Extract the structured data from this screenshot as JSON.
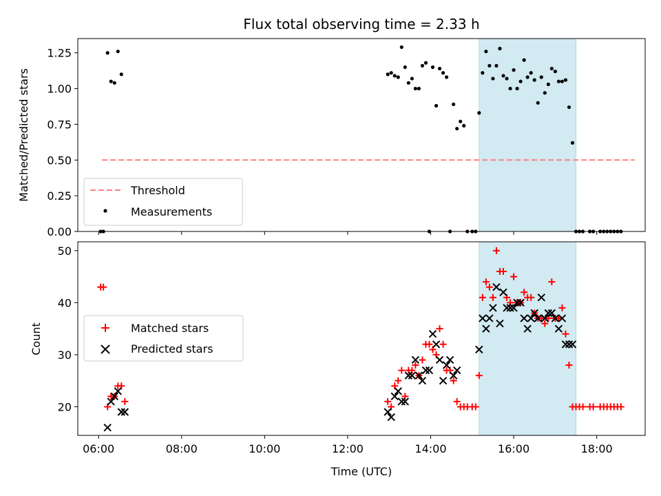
{
  "chart_data": [
    {
      "type": "scatter",
      "title": "Flux total observing time = 2.33 h",
      "ylabel": "Matched/Predicted stars",
      "xlabel": "",
      "xlim": [
        "05:30",
        "19:10"
      ],
      "ylim": [
        0,
        1.35
      ],
      "yticks": [
        0.0,
        0.25,
        0.5,
        0.75,
        1.0,
        1.25
      ],
      "ytick_labels": [
        "0.00",
        "0.25",
        "0.50",
        "0.75",
        "1.00",
        "1.25"
      ],
      "xticks": [
        "06:00",
        "08:00",
        "10:00",
        "12:00",
        "14:00",
        "16:00",
        "18:00"
      ],
      "show_xtick_labels": false,
      "shaded_region": {
        "start": "15:10",
        "end": "17:30",
        "color": "#add8e6"
      },
      "legend_position": "lower-left",
      "threshold": {
        "name": "Threshold",
        "value": 0.5,
        "x_start": "06:05",
        "x_end": "18:55",
        "color": "#ff7f7f"
      },
      "series": [
        {
          "name": "Measurements",
          "color": "#000000",
          "points": [
            [
              "06:03",
              0.0
            ],
            [
              "06:07",
              0.0
            ],
            [
              "06:13",
              1.25
            ],
            [
              "06:18",
              1.05
            ],
            [
              "06:23",
              1.04
            ],
            [
              "06:28",
              1.26
            ],
            [
              "06:33",
              1.1
            ],
            [
              "12:58",
              1.1
            ],
            [
              "13:03",
              1.11
            ],
            [
              "13:08",
              1.09
            ],
            [
              "13:13",
              1.08
            ],
            [
              "13:18",
              1.29
            ],
            [
              "13:23",
              1.15
            ],
            [
              "13:28",
              1.04
            ],
            [
              "13:33",
              1.07
            ],
            [
              "13:38",
              1.0
            ],
            [
              "13:43",
              1.0
            ],
            [
              "13:48",
              1.16
            ],
            [
              "13:53",
              1.18
            ],
            [
              "13:58",
              0.0
            ],
            [
              "14:03",
              1.15
            ],
            [
              "14:08",
              0.88
            ],
            [
              "14:13",
              1.14
            ],
            [
              "14:18",
              1.11
            ],
            [
              "14:23",
              1.08
            ],
            [
              "14:28",
              0.0
            ],
            [
              "14:33",
              0.89
            ],
            [
              "14:38",
              0.72
            ],
            [
              "14:43",
              0.77
            ],
            [
              "14:48",
              0.74
            ],
            [
              "14:53",
              0.0
            ],
            [
              "15:00",
              0.0
            ],
            [
              "15:05",
              0.0
            ],
            [
              "15:10",
              0.83
            ],
            [
              "15:15",
              1.11
            ],
            [
              "15:20",
              1.26
            ],
            [
              "15:25",
              1.16
            ],
            [
              "15:30",
              1.07
            ],
            [
              "15:35",
              1.16
            ],
            [
              "15:40",
              1.28
            ],
            [
              "15:45",
              1.09
            ],
            [
              "15:50",
              1.07
            ],
            [
              "15:55",
              1.0
            ],
            [
              "16:00",
              1.13
            ],
            [
              "16:05",
              1.0
            ],
            [
              "16:10",
              1.05
            ],
            [
              "16:15",
              1.2
            ],
            [
              "16:20",
              1.08
            ],
            [
              "16:25",
              1.11
            ],
            [
              "16:30",
              1.06
            ],
            [
              "16:35",
              0.9
            ],
            [
              "16:40",
              1.08
            ],
            [
              "16:45",
              0.97
            ],
            [
              "16:50",
              1.03
            ],
            [
              "16:55",
              1.14
            ],
            [
              "17:00",
              1.12
            ],
            [
              "17:05",
              1.05
            ],
            [
              "17:10",
              1.05
            ],
            [
              "17:15",
              1.06
            ],
            [
              "17:20",
              0.87
            ],
            [
              "17:25",
              0.62
            ],
            [
              "17:30",
              0.0
            ],
            [
              "17:35",
              0.0
            ],
            [
              "17:40",
              0.0
            ],
            [
              "17:50",
              0.0
            ],
            [
              "17:55",
              0.0
            ],
            [
              "18:05",
              0.0
            ],
            [
              "18:10",
              0.0
            ],
            [
              "18:15",
              0.0
            ],
            [
              "18:20",
              0.0
            ],
            [
              "18:25",
              0.0
            ],
            [
              "18:30",
              0.0
            ],
            [
              "18:35",
              0.0
            ]
          ]
        }
      ]
    },
    {
      "type": "scatter",
      "title": "",
      "ylabel": "Count",
      "xlabel": "Time (UTC)",
      "xlim": [
        "05:30",
        "19:10"
      ],
      "ylim": [
        14.5,
        51.7
      ],
      "yticks": [
        20,
        30,
        40,
        50
      ],
      "ytick_labels": [
        "20",
        "30",
        "40",
        "50"
      ],
      "xticks": [
        "06:00",
        "08:00",
        "10:00",
        "12:00",
        "14:00",
        "16:00",
        "18:00"
      ],
      "xtick_labels": [
        "06:00",
        "08:00",
        "10:00",
        "12:00",
        "14:00",
        "16:00",
        "18:00"
      ],
      "shaded_region": {
        "start": "15:10",
        "end": "17:30",
        "color": "#add8e6"
      },
      "legend_position": "center-left",
      "series": [
        {
          "name": "Matched stars",
          "marker": "plus",
          "color": "#ff0000",
          "points": [
            [
              "06:03",
              43
            ],
            [
              "06:07",
              43
            ],
            [
              "06:13",
              20
            ],
            [
              "06:18",
              22
            ],
            [
              "06:23",
              22
            ],
            [
              "06:28",
              24
            ],
            [
              "06:33",
              24
            ],
            [
              "06:38",
              21
            ],
            [
              "12:58",
              21
            ],
            [
              "13:03",
              20
            ],
            [
              "13:08",
              24
            ],
            [
              "13:13",
              25
            ],
            [
              "13:18",
              27
            ],
            [
              "13:23",
              22
            ],
            [
              "13:28",
              27
            ],
            [
              "13:33",
              27
            ],
            [
              "13:38",
              28
            ],
            [
              "13:43",
              26
            ],
            [
              "13:48",
              29
            ],
            [
              "13:53",
              32
            ],
            [
              "13:58",
              32
            ],
            [
              "14:03",
              31
            ],
            [
              "14:08",
              30
            ],
            [
              "14:13",
              35
            ],
            [
              "14:18",
              32
            ],
            [
              "14:23",
              27
            ],
            [
              "14:28",
              27
            ],
            [
              "14:33",
              25
            ],
            [
              "14:38",
              21
            ],
            [
              "14:43",
              20
            ],
            [
              "14:48",
              20
            ],
            [
              "14:53",
              20
            ],
            [
              "15:00",
              20
            ],
            [
              "15:05",
              20
            ],
            [
              "15:10",
              26
            ],
            [
              "15:15",
              41
            ],
            [
              "15:20",
              44
            ],
            [
              "15:25",
              43
            ],
            [
              "15:30",
              41
            ],
            [
              "15:35",
              50
            ],
            [
              "15:40",
              46
            ],
            [
              "15:45",
              46
            ],
            [
              "15:50",
              41
            ],
            [
              "15:55",
              40
            ],
            [
              "16:00",
              45
            ],
            [
              "16:05",
              40
            ],
            [
              "16:10",
              40
            ],
            [
              "16:15",
              42
            ],
            [
              "16:20",
              41
            ],
            [
              "16:25",
              41
            ],
            [
              "16:30",
              38
            ],
            [
              "16:35",
              37
            ],
            [
              "16:40",
              37
            ],
            [
              "16:45",
              36
            ],
            [
              "16:50",
              37
            ],
            [
              "16:55",
              44
            ],
            [
              "17:00",
              37
            ],
            [
              "17:05",
              37
            ],
            [
              "17:10",
              39
            ],
            [
              "17:15",
              34
            ],
            [
              "17:20",
              28
            ],
            [
              "17:25",
              20
            ],
            [
              "17:30",
              20
            ],
            [
              "17:35",
              20
            ],
            [
              "17:40",
              20
            ],
            [
              "17:50",
              20
            ],
            [
              "17:55",
              20
            ],
            [
              "18:05",
              20
            ],
            [
              "18:10",
              20
            ],
            [
              "18:15",
              20
            ],
            [
              "18:20",
              20
            ],
            [
              "18:25",
              20
            ],
            [
              "18:30",
              20
            ],
            [
              "18:35",
              20
            ]
          ]
        },
        {
          "name": "Predicted stars",
          "marker": "x",
          "color": "#000000",
          "points": [
            [
              "06:13",
              16
            ],
            [
              "06:18",
              21
            ],
            [
              "06:23",
              22
            ],
            [
              "06:28",
              23
            ],
            [
              "06:33",
              19
            ],
            [
              "06:38",
              19
            ],
            [
              "12:58",
              19
            ],
            [
              "13:03",
              18
            ],
            [
              "13:08",
              22
            ],
            [
              "13:13",
              23
            ],
            [
              "13:18",
              21
            ],
            [
              "13:23",
              21
            ],
            [
              "13:28",
              26
            ],
            [
              "13:33",
              26
            ],
            [
              "13:38",
              29
            ],
            [
              "13:43",
              26
            ],
            [
              "13:48",
              25
            ],
            [
              "13:53",
              27
            ],
            [
              "13:58",
              27
            ],
            [
              "14:03",
              34
            ],
            [
              "14:08",
              32
            ],
            [
              "14:13",
              29
            ],
            [
              "14:18",
              25
            ],
            [
              "14:23",
              28
            ],
            [
              "14:28",
              29
            ],
            [
              "14:33",
              26
            ],
            [
              "14:38",
              27
            ],
            [
              "15:10",
              31
            ],
            [
              "15:15",
              37
            ],
            [
              "15:20",
              35
            ],
            [
              "15:25",
              37
            ],
            [
              "15:30",
              39
            ],
            [
              "15:35",
              43
            ],
            [
              "15:40",
              36
            ],
            [
              "15:45",
              42
            ],
            [
              "15:50",
              39
            ],
            [
              "15:55",
              39
            ],
            [
              "16:00",
              39
            ],
            [
              "16:05",
              40
            ],
            [
              "16:10",
              40
            ],
            [
              "16:15",
              37
            ],
            [
              "16:20",
              35
            ],
            [
              "16:25",
              37
            ],
            [
              "16:30",
              38
            ],
            [
              "16:35",
              37
            ],
            [
              "16:40",
              41
            ],
            [
              "16:45",
              37
            ],
            [
              "16:50",
              38
            ],
            [
              "16:55",
              38
            ],
            [
              "17:00",
              37
            ],
            [
              "17:05",
              35
            ],
            [
              "17:10",
              37
            ],
            [
              "17:15",
              32
            ],
            [
              "17:20",
              32
            ],
            [
              "17:25",
              32
            ]
          ]
        }
      ]
    }
  ]
}
